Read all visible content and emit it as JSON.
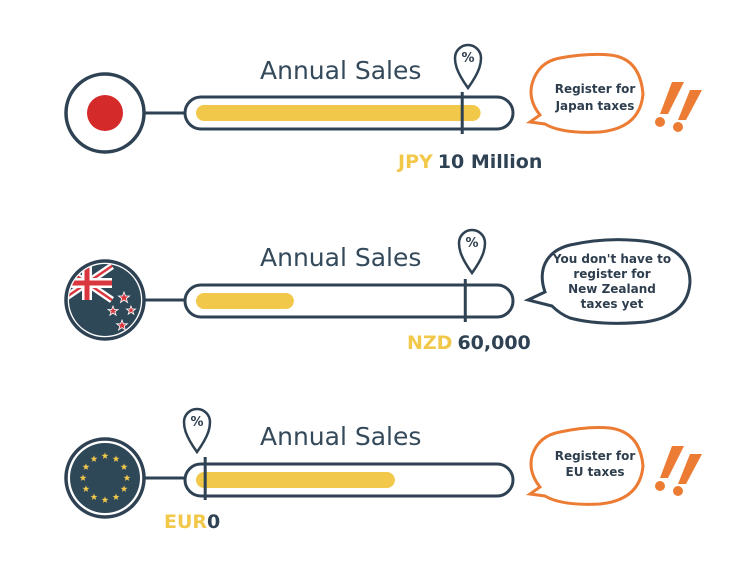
{
  "colors": {
    "navy": "#2e4254",
    "yellow": "#f2c84b",
    "orange": "#ec7c33",
    "japan_red": "#d52a2a",
    "nz_blue": "#2f4858",
    "nz_red": "#d9363e",
    "eu_blue": "#2f4858",
    "eu_star": "#f2c84b"
  },
  "rows": [
    {
      "id": "japan",
      "flag": "japan-flag-icon",
      "title": "Annual Sales",
      "currency": "JPY",
      "threshold": "10 Million",
      "pin_label": "%",
      "bubble_lines": [
        "Register for",
        "Japan taxes"
      ],
      "alert": true,
      "sales_fill_fraction": 0.93,
      "threshold_fraction": 0.87
    },
    {
      "id": "new-zealand",
      "flag": "new-zealand-flag-icon",
      "title": "Annual Sales",
      "currency": "NZD",
      "threshold": "60,000",
      "pin_label": "%",
      "bubble_lines": [
        "You don't have to",
        "register for",
        "New Zealand",
        "taxes yet"
      ],
      "alert": false,
      "sales_fill_fraction": 0.32,
      "threshold_fraction": 0.88
    },
    {
      "id": "eu",
      "flag": "eu-flag-icon",
      "title": "Annual Sales",
      "currency": "EUR",
      "threshold": "0",
      "pin_label": "%",
      "bubble_lines": [
        "Register for",
        "EU taxes"
      ],
      "alert": true,
      "sales_fill_fraction": 0.65,
      "threshold_fraction": 0.03
    }
  ]
}
